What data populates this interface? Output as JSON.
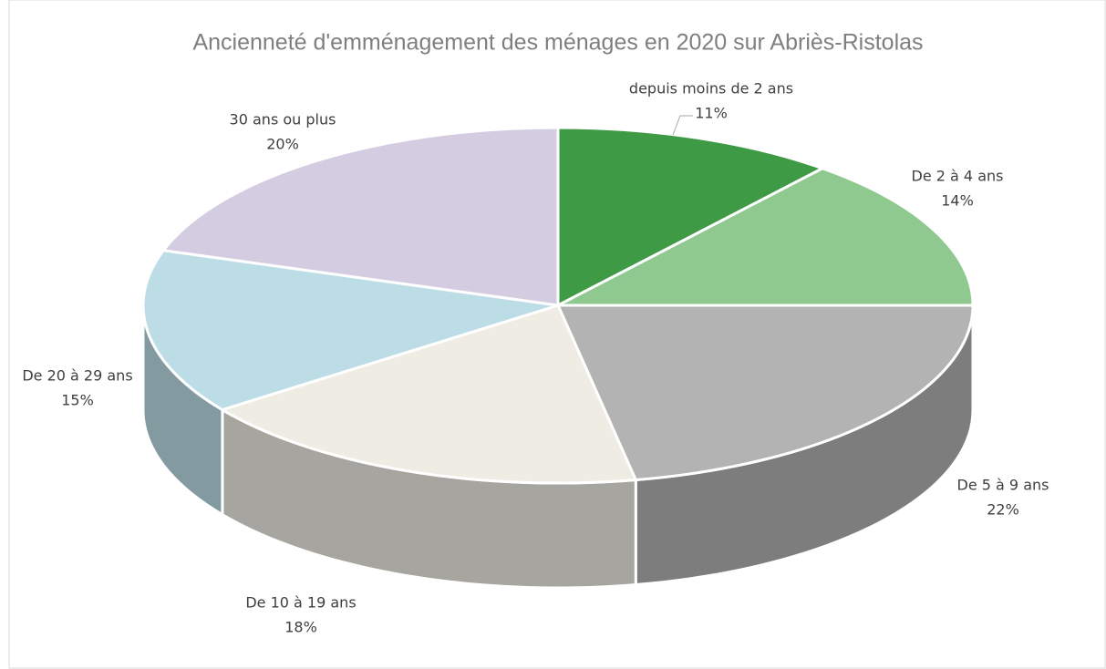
{
  "chart_data": {
    "type": "pie",
    "title": "Ancienneté d'emménagement des ménages en 2020 sur Abriès-Ristolas",
    "categories": [
      "depuis moins de 2 ans",
      "De 2 à 4 ans",
      "De 5 à 9 ans",
      "De 10 à 19 ans",
      "De 20 à 29 ans",
      "30 ans ou plus"
    ],
    "values": [
      11,
      14,
      22,
      18,
      15,
      20
    ],
    "value_labels": [
      "11%",
      "14%",
      "22%",
      "18%",
      "15%",
      "20%"
    ],
    "colors": [
      "#3f9a46",
      "#8fc98f",
      "#b3b3b3",
      "#eeece3",
      "#bcdce6",
      "#d4cce1"
    ]
  }
}
